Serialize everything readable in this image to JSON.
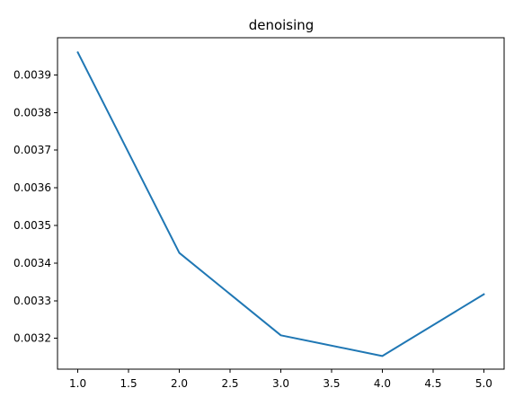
{
  "chart_data": {
    "type": "line",
    "title": "denoising",
    "xlabel": "",
    "ylabel": "",
    "x": [
      1.0,
      2.0,
      3.0,
      4.0,
      5.0
    ],
    "series": [
      {
        "values": [
          0.00396,
          0.003427,
          0.003208,
          0.003153,
          0.003317
        ],
        "color": "#1f77b4"
      }
    ],
    "xlim": [
      0.8,
      5.2
    ],
    "ylim": [
      0.003118,
      0.003999
    ],
    "xticks": [
      1.0,
      1.5,
      2.0,
      2.5,
      3.0,
      3.5,
      4.0,
      4.5,
      5.0
    ],
    "xtick_labels": [
      "1.0",
      "1.5",
      "2.0",
      "2.5",
      "3.0",
      "3.5",
      "4.0",
      "4.5",
      "5.0"
    ],
    "yticks": [
      0.0032,
      0.0033,
      0.0034,
      0.0035,
      0.0036,
      0.0037,
      0.0038,
      0.0039
    ],
    "ytick_labels": [
      "0.0032",
      "0.0033",
      "0.0034",
      "0.0035",
      "0.0036",
      "0.0037",
      "0.0038",
      "0.0039"
    ],
    "grid": false,
    "legend": false
  }
}
